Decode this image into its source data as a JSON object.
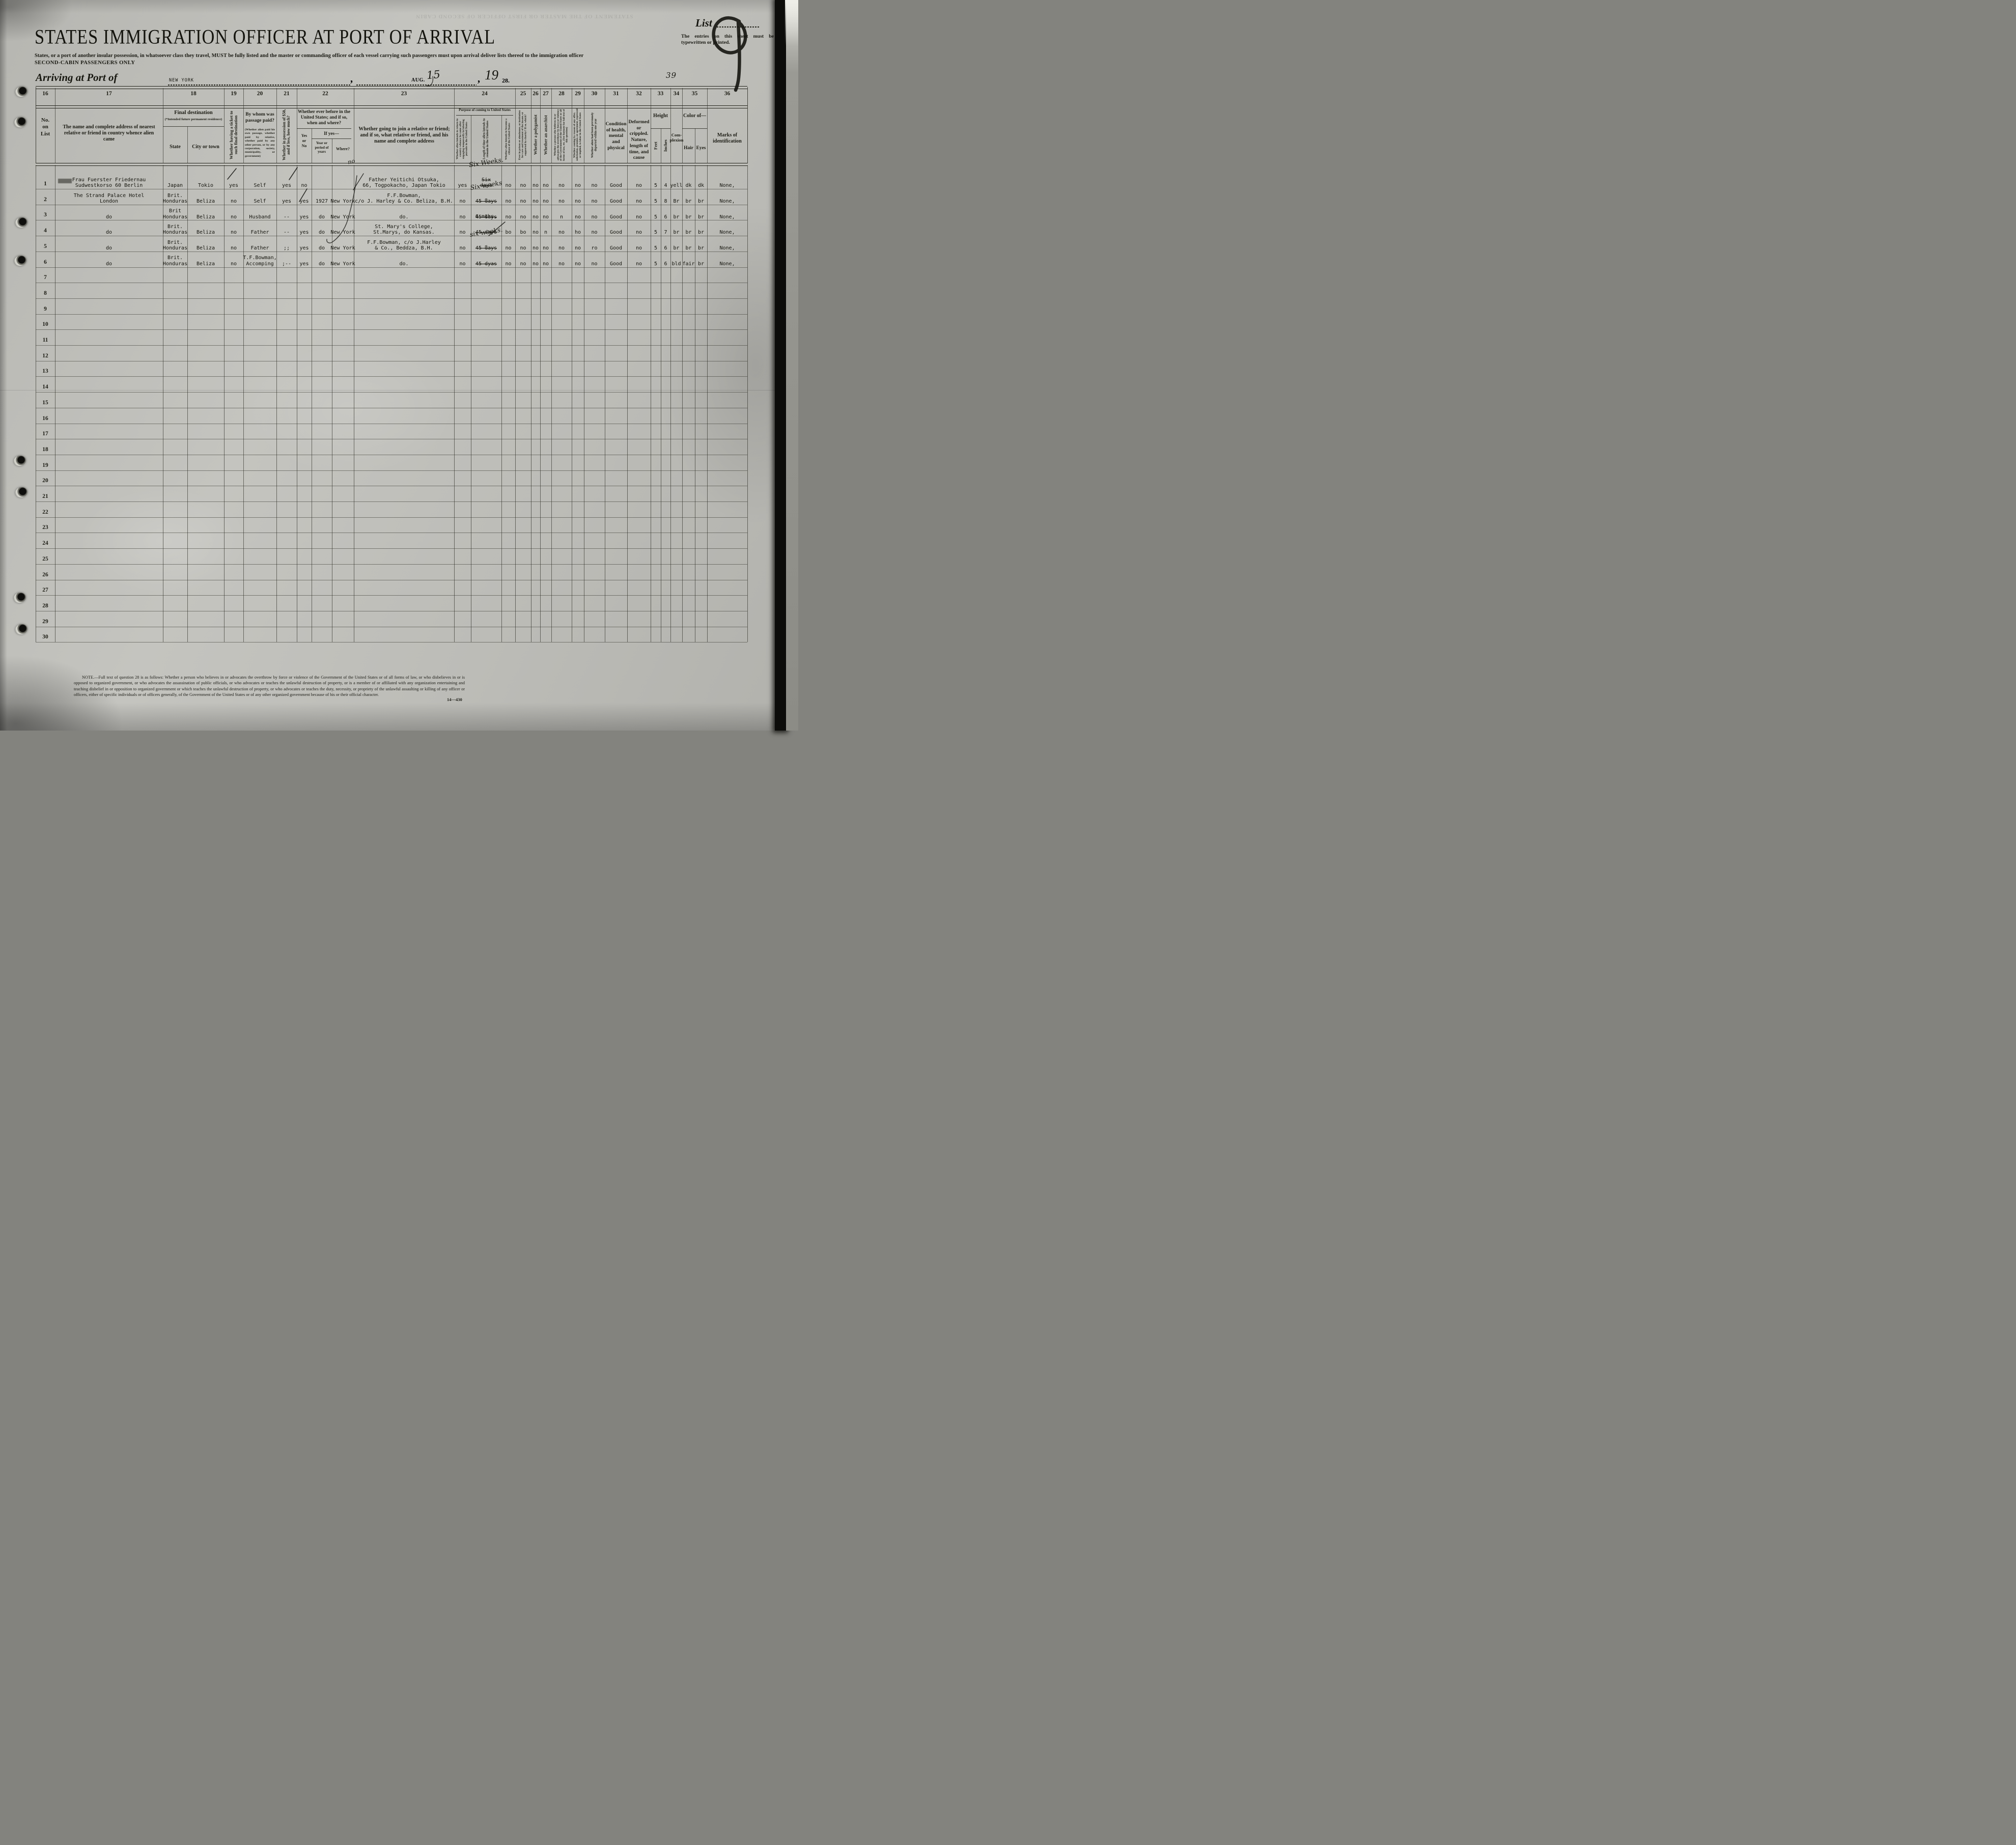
{
  "page": {
    "list_label": "List",
    "list_number": "9",
    "entries_note": "The entries on this sheet must be typewritten or printed.",
    "title": "STATES IMMIGRATION OFFICER AT PORT OF ARRIVAL",
    "subtitle": "States, or a port of another insular possession, in whatsoever class they travel, MUST be fully listed and the master or commanding officer of each vessel carrying such passengers must upon arrival deliver lists thereof to the immigration officer",
    "subtitle2": "SECOND-CABIN PASSENGERS ONLY",
    "arriving_label": "Arriving at Port of",
    "port": "NEW YORK",
    "date_month": "AUG.",
    "date_day": "15",
    "comma": ",",
    "year_prefix": "19",
    "year_suffix": "28.",
    "sheet_number": "39",
    "bleed_text": "STATEMENT OF THE MASTER OR FIRST OFFICER OF SECOND CABIN"
  },
  "table": {
    "col_numbers": [
      "16",
      "17",
      "18",
      "19",
      "20",
      "21",
      "22",
      "23",
      "24",
      "25",
      "26",
      "27",
      "28",
      "29",
      "30",
      "31",
      "32",
      "33",
      "34",
      "35",
      "36"
    ],
    "h16": "No.\non\nList",
    "h17": "The name and complete address of nearest relative or friend in country whence alien came",
    "h18": "Final destination",
    "h18sub": "(*Intended future permanent residence)",
    "h18state": "State",
    "h18city": "City or town",
    "h19": "Whether having a ticket to such final destination",
    "h20": "By whom was passage paid?",
    "h20sub": "(Whether alien paid his own passage, whether paid by relative, whether paid by any other person, or by any corporation, society, municipality, or government)",
    "h21": "Whether in possession of $50, and if less, how much?",
    "h22": "Whether ever before in the United States; and if so, when and where?",
    "h22yn": "Yes\nor\nNo",
    "h22ifyes": "If yes—",
    "h22yr": "Year or period of years",
    "h22w": "Where?",
    "h23": "Whether going to join a relative or friend; and if so, what relative or friend, and his name and complete address",
    "h24": "Purpose of coming to United States",
    "h24a": "Whether alien intends to return to country whence he came after engaging temporarily in laboring pursuits in the United States",
    "h24b": "Length of time alien intends to remain in the United States",
    "h24c": "Whether alien intends to become a citizen of the United States",
    "h25": "Ever in prison or almshouse, or institution for care and treatment of the insane, or supported by charity? If so, which?",
    "h26": "Whether a polygamist",
    "h27": "Whether an anarchist",
    "h28": "Whether a person who believes in or advocates the overthrow by force or violence of the Government of the United States or all forms of law, etc. (See footnote for full text of this question)",
    "h29": "Whether coming by reason of any offer, solicitation, promise, or agreement, expressed or implied, to labor in the United States",
    "h30": "Whether alien had been previously deported within one year",
    "h31": "Condition of health, mental and physical",
    "h32": "Deformed or crippled. Nature, length of time, and cause",
    "h33": "Height",
    "h33f": "Feet",
    "h33i": "Inches",
    "h34": "Com-\nplexion",
    "h35": "Color of—",
    "h35h": "Hair",
    "h35e": "Eyes",
    "h36": "Marks of identification"
  },
  "rows": [
    {
      "no": "1",
      "cells": {
        "17": {
          "t": "Frau Fuerster Friedernau\nSudwestkorso 60 Berlin",
          "smudge": true
        },
        "18s": "Japan",
        "18c": "Tokio",
        "19": "yes",
        "20": "Self",
        "21": "yes",
        "22yn": "no",
        "23": {
          "t": "Father Yeitichi Otsuka,\n66, Togpokacho, Japan Tokio",
          "hwpre": "no"
        },
        "24a": "yes",
        "24b": {
          "t": "Six\ndays",
          "strike": true,
          "hw": "Six Weeks."
        },
        "24c": "no",
        "25": "no",
        "26": "no",
        "27": "no",
        "28": "no",
        "29": "no",
        "30": "no",
        "31": "Good",
        "32": "no",
        "33f": "5",
        "33i": "4",
        "34": "yell",
        "35h": "dk",
        "35e": "dk",
        "36": "None,"
      }
    },
    {
      "no": "2",
      "cells": {
        "17": "The Strand Palace Hotel\nLondon",
        "18s": "Brit.\nHonduras",
        "18c": "Beliza",
        "19": "no",
        "20": "Self",
        "21": "yes",
        "22yn": "yes",
        "22yr": "1927",
        "22w": "New York",
        "23": "F.F.Bowman,\nc/o J. Harley & Co. Beliza, B.H.",
        "24a": "no",
        "24b": {
          "t": "45 days",
          "strike": true,
          "hw": "Six weeks"
        },
        "24c": "no",
        "25": "no",
        "26": "no",
        "27": "no",
        "28": "no",
        "29": "no",
        "30": "no",
        "31": "Good",
        "32": "no",
        "33f": "5",
        "33i": "8",
        "34": "Br",
        "35h": "br",
        "35e": "br",
        "36": "None,"
      }
    },
    {
      "no": "3",
      "cells": {
        "17": "do",
        "18s": "Brit\nHonduras",
        "18c": "Beliza",
        "19": "no",
        "20": "Husband",
        "21": "--",
        "22yn": "yes",
        "22yr": "do",
        "22w": "New York",
        "23": "do.",
        "24a": "no",
        "24b": {
          "t": "45 days",
          "strike": true,
          "hw": "″"
        },
        "24c": "no",
        "25": "no",
        "26": "no",
        "27": "no",
        "28": "n",
        "29": "no",
        "30": "no",
        "31": "Good",
        "32": "no",
        "33f": "5",
        "33i": "6",
        "34": "br",
        "35h": "br",
        "35e": "br",
        "36": "None,"
      }
    },
    {
      "no": "4",
      "cells": {
        "17": "do",
        "18s": "Brit.\nHonduras",
        "18c": "Beliza",
        "19": "no",
        "20": "Father",
        "21": "--",
        "22yn": "yes",
        "22yr": "do",
        "22w": "New York",
        "23": "St. Mary's College,\nSt.Marys, do Kansas.",
        "24a": "no",
        "24b": {
          "t": "45 days",
          "strike": true,
          "pre": "6 mths."
        },
        "24c": "bo",
        "25": "bo",
        "26": "no",
        "27": "n",
        "28": "no",
        "29": "ho",
        "30": "no",
        "31": "Good",
        "32": "no",
        "33f": "5",
        "33i": "7",
        "34": "br",
        "35h": "br",
        "35e": "br",
        "36": "None,"
      }
    },
    {
      "no": "5",
      "cells": {
        "17": "do",
        "18s": "Brit.\nHonduras",
        "18c": "Beliza",
        "19": "no",
        "20": "Father",
        "21": ";;",
        "22yn": "yes",
        "22yr": "do",
        "22w": "New York",
        "23": "F.F.Bowman, c/o J.Harley\n& Co., Beddza, B.H.",
        "24a": "no",
        "24b": {
          "t": "45 days",
          "strike": true,
          "hw": "six weeks."
        },
        "24c": "no",
        "25": "no",
        "26": "no",
        "27": "no",
        "28": "no",
        "29": "no",
        "30": "ro",
        "31": "Good",
        "32": "no",
        "33f": "5",
        "33i": "6",
        "34": "br",
        "35h": "br",
        "35e": "br",
        "36": "None,"
      }
    },
    {
      "no": "6",
      "cells": {
        "17": "do",
        "18s": "Brit.\nHonduras",
        "18c": "Beliza",
        "19": "no",
        "20": "T.F.Bowman,\nAccomping",
        "21": ";--",
        "22yn": "yes",
        "22yr": "do",
        "22w": "New York",
        "23": "do.",
        "24a": "no",
        "24b": {
          "t": "45 dyas",
          "strike": true,
          "hw": "″"
        },
        "24c": "no",
        "25": "no",
        "26": "no",
        "27": "no",
        "28": "no",
        "29": "no",
        "30": "no",
        "31": "Good",
        "32": "no",
        "33f": "5",
        "33i": "6",
        "34": "bld",
        "35h": "fair",
        "35e": "br",
        "36": "None,"
      }
    },
    {
      "no": "7",
      "cells": {}
    },
    {
      "no": "8",
      "cells": {}
    },
    {
      "no": "9",
      "cells": {}
    },
    {
      "no": "10",
      "cells": {}
    },
    {
      "no": "11",
      "cells": {}
    },
    {
      "no": "12",
      "cells": {}
    },
    {
      "no": "13",
      "cells": {}
    },
    {
      "no": "14",
      "cells": {}
    },
    {
      "no": "15",
      "cells": {}
    },
    {
      "no": "16",
      "cells": {}
    },
    {
      "no": "17",
      "cells": {}
    },
    {
      "no": "18",
      "cells": {}
    },
    {
      "no": "19",
      "cells": {}
    },
    {
      "no": "20",
      "cells": {}
    },
    {
      "no": "21",
      "cells": {}
    },
    {
      "no": "22",
      "cells": {}
    },
    {
      "no": "23",
      "cells": {}
    },
    {
      "no": "24",
      "cells": {}
    },
    {
      "no": "25",
      "cells": {}
    },
    {
      "no": "26",
      "cells": {}
    },
    {
      "no": "27",
      "cells": {}
    },
    {
      "no": "28",
      "cells": {}
    },
    {
      "no": "29",
      "cells": {}
    },
    {
      "no": "30",
      "cells": {}
    }
  ],
  "footer": {
    "note": "NOTE.—Full text of question 28 is as follows:  Whether a person who believes in or advocates the overthrow by force or violence of the Government of the United States or of all forms of law, or who disbelieves in or is opposed to organized government, or who advocates the assassination of public officials, or who advocates or teaches the unlawful destruction of property, or is a member of or affiliated with any organization entertaining and teaching disbelief in or opposition to organized government or which teaches the unlawful destruction of property, or who advocates or teaches the duty, necessity, or propriety of the unlawful assaulting or killing of any officer or officers, either of specific individuals or of officers generally, of the Government of the United States or of any other organized government because of his or their official character.",
    "form_number": "14—430"
  }
}
